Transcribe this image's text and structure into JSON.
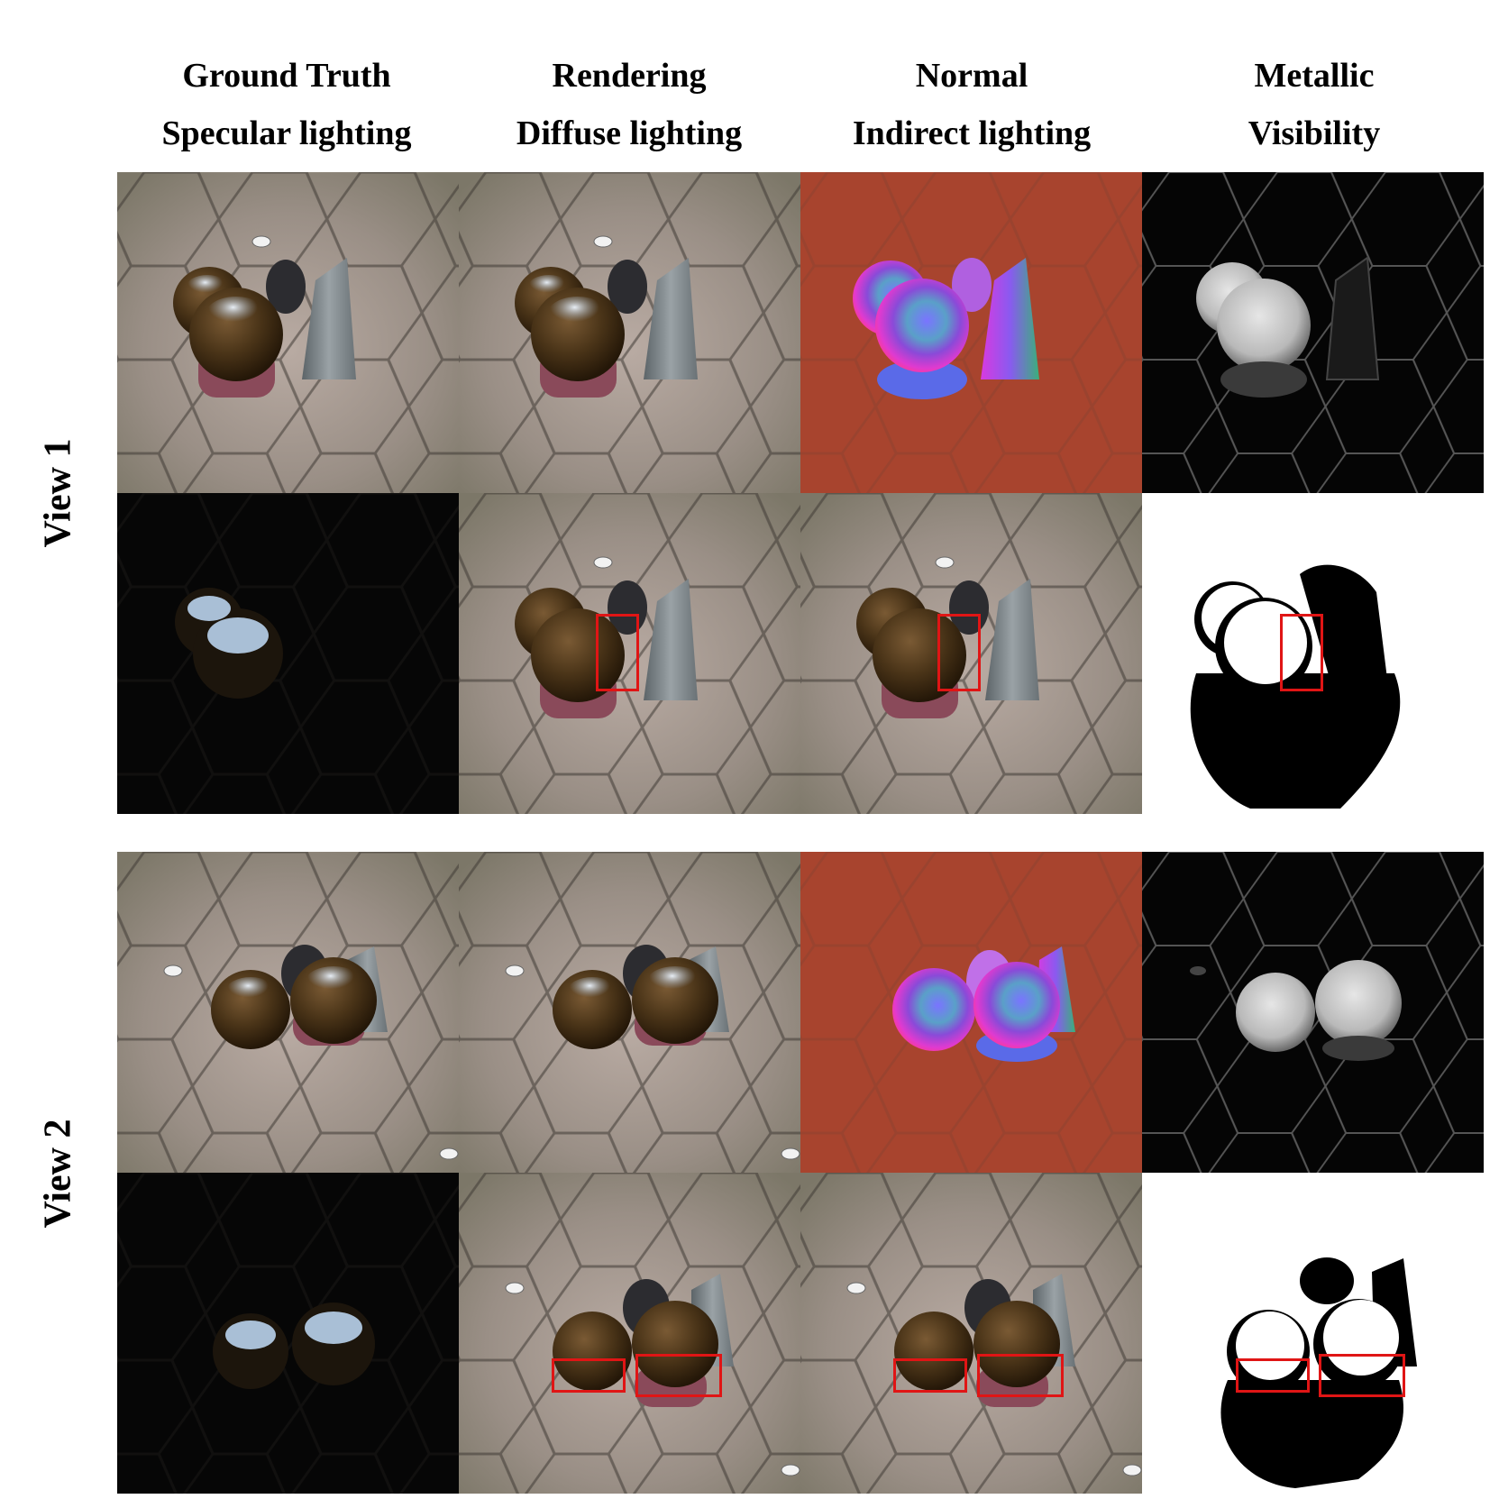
{
  "columns": [
    {
      "top": "Ground Truth",
      "bottom": "Specular lighting"
    },
    {
      "top": "Rendering",
      "bottom": "Diffuse lighting"
    },
    {
      "top": "Normal",
      "bottom": "Indirect lighting"
    },
    {
      "top": "Metallic",
      "bottom": "Visibility"
    }
  ],
  "rows": [
    {
      "label": "View 1"
    },
    {
      "label": "View 2"
    }
  ],
  "colors": {
    "highlight_box": "#e01515",
    "normal_background": "#a8442e",
    "ground_stone": "#8f8378",
    "ball_brown": "#4a3418"
  }
}
